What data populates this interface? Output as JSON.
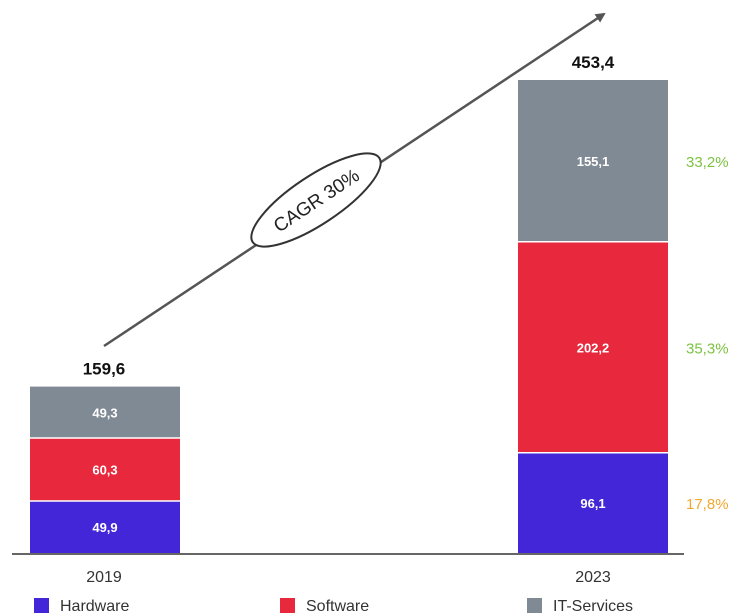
{
  "chart_data": {
    "type": "bar",
    "stacked": true,
    "categories": [
      "2019",
      "2023"
    ],
    "series": [
      {
        "name": "Hardware",
        "color": "#4326d8",
        "values": [
          49.9,
          96.1
        ],
        "labels": [
          "49,9",
          "96,1"
        ]
      },
      {
        "name": "Software",
        "color": "#e8283c",
        "values": [
          60.3,
          202.2
        ],
        "labels": [
          "60,3",
          "202,2"
        ]
      },
      {
        "name": "IT-Services",
        "color": "#808a94",
        "values": [
          49.3,
          155.1
        ],
        "labels": [
          "49,3",
          "155,1"
        ]
      }
    ],
    "totals": [
      "159,6",
      "453,4"
    ],
    "shares_2023": [
      {
        "text": "17,8%",
        "color": "#f0a830"
      },
      {
        "text": "35,3%",
        "color": "#7dc242"
      },
      {
        "text": "33,2%",
        "color": "#7dc242"
      }
    ],
    "annotation": "CAGR 30%",
    "legend_position": "bottom",
    "grid": false,
    "ylim": [
      0,
      453.4
    ]
  }
}
